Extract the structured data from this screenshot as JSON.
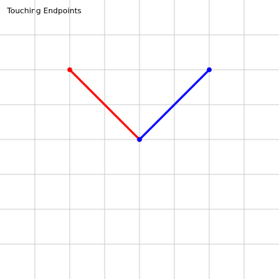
{
  "title": "Touching Endpoints",
  "grid": {
    "visible": true,
    "color": "#cccccc",
    "cells": 8
  },
  "segments": [
    {
      "name": "red-segment",
      "color": "#ff0000",
      "from": [
        2,
        2
      ],
      "to": [
        4,
        4
      ]
    },
    {
      "name": "blue-segment",
      "color": "#0000ff",
      "from": [
        4,
        4
      ],
      "to": [
        6,
        2
      ]
    }
  ]
}
